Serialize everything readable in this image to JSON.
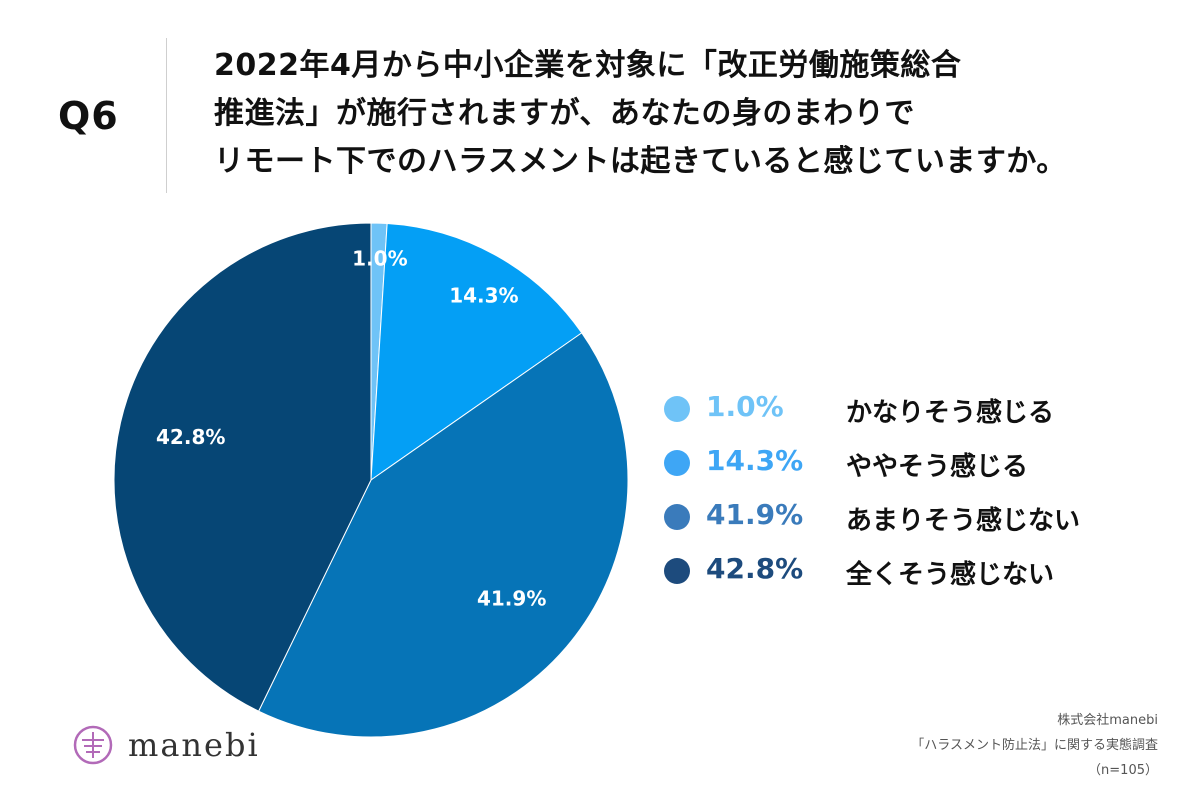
{
  "question": {
    "label": "Q6",
    "lines": [
      "2022年4月から中小企業を対象に「改正労働施策総合",
      "推進法」が施行されますが、あなたの身のまわりで",
      "リモート下でのハラスメントは起きていると感じていますか。"
    ]
  },
  "chart_data": {
    "type": "pie",
    "title": "2022年4月から中小企業を対象に「改正労働施策総合推進法」が施行されますが、あなたの身のまわりでリモート下でのハラスメントは起きていると感じていますか。",
    "categories": [
      "かなりそう感じる",
      "ややそう感じる",
      "あまりそう感じない",
      "全くそう感じない"
    ],
    "values": [
      1.0,
      14.3,
      41.9,
      42.8
    ],
    "labels": [
      "1.0%",
      "14.3%",
      "41.9%",
      "42.8%"
    ],
    "colors": [
      "#6fc3f7",
      "#049ff5",
      "#0674b7",
      "#064675"
    ],
    "legend_colors": [
      "#6fc3f7",
      "#3ea6f5",
      "#3a7bbb",
      "#1d4b7d"
    ],
    "legend_position": "right",
    "start": "12 o'clock, clockwise"
  },
  "legend": {
    "items": [
      {
        "pct": "1.0%",
        "text": "かなりそう感じる"
      },
      {
        "pct": "14.3%",
        "text": "ややそう感じる"
      },
      {
        "pct": "41.9%",
        "text": "あまりそう感じない"
      },
      {
        "pct": "42.8%",
        "text": "全くそう感じない"
      }
    ]
  },
  "logo": {
    "name": "manebi"
  },
  "source": {
    "company": "株式会社manebi",
    "survey": "「ハラスメント防止法」に関する実態調査",
    "sample": "（n=105）"
  }
}
